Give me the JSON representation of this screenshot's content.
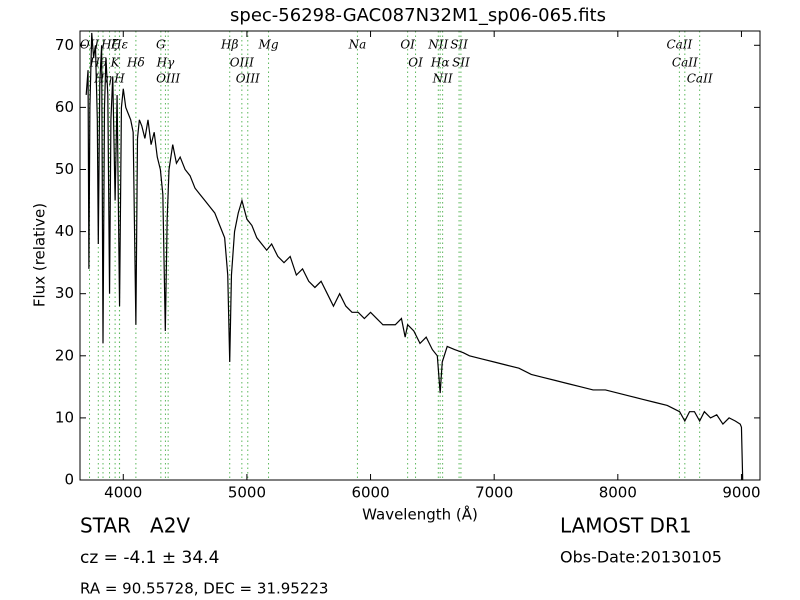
{
  "chart_data": {
    "type": "line",
    "title": "spec-56298-GAC087N32M1_sp06-065.fits",
    "x_label": "Wavelength (Å)",
    "y_label": "Flux (relative)",
    "color": "#000000",
    "xlim": [
      3650,
      9150
    ],
    "ylim": [
      0,
      72.3
    ],
    "xticks": [
      4000,
      5000,
      6000,
      7000,
      8000,
      9000
    ],
    "yticks": [
      0,
      10,
      20,
      30,
      40,
      50,
      60,
      70
    ],
    "x": [
      3700,
      3715,
      3722,
      3730,
      3745,
      3760,
      3775,
      3790,
      3798,
      3810,
      3825,
      3836,
      3848,
      3860,
      3875,
      3889,
      3900,
      3915,
      3934,
      3950,
      3970,
      3985,
      4000,
      4020,
      4040,
      4060,
      4080,
      4102,
      4115,
      4130,
      4150,
      4175,
      4200,
      4225,
      4250,
      4275,
      4300,
      4320,
      4340,
      4355,
      4370,
      4400,
      4430,
      4460,
      4500,
      4540,
      4580,
      4620,
      4660,
      4700,
      4740,
      4780,
      4820,
      4845,
      4861,
      4875,
      4900,
      4930,
      4960,
      5000,
      5040,
      5080,
      5120,
      5160,
      5200,
      5250,
      5300,
      5350,
      5400,
      5450,
      5500,
      5550,
      5600,
      5650,
      5700,
      5750,
      5800,
      5850,
      5900,
      5950,
      6000,
      6050,
      6100,
      6150,
      6200,
      6250,
      6280,
      6300,
      6350,
      6400,
      6450,
      6500,
      6540,
      6563,
      6580,
      6620,
      6680,
      6750,
      6800,
      6900,
      7000,
      7100,
      7200,
      7300,
      7400,
      7500,
      7600,
      7700,
      7800,
      7900,
      8000,
      8100,
      8200,
      8300,
      8400,
      8450,
      8500,
      8542,
      8580,
      8620,
      8662,
      8700,
      8750,
      8800,
      8850,
      8900,
      8950,
      8990,
      9000,
      9010
    ],
    "values": [
      62,
      66,
      34,
      60,
      72,
      68,
      70,
      58,
      38,
      64,
      70,
      22,
      60,
      68,
      62,
      30,
      58,
      65,
      45,
      62,
      28,
      60,
      63,
      60,
      59,
      58,
      56,
      25,
      55,
      58,
      57,
      55,
      58,
      54,
      56,
      52,
      50,
      46,
      24,
      42,
      50,
      54,
      51,
      52,
      50,
      49,
      47,
      46,
      45,
      44,
      43,
      41,
      39,
      33,
      19,
      33,
      40,
      43,
      45,
      42,
      41,
      39,
      38,
      37,
      38,
      36,
      35,
      36,
      33,
      34,
      32,
      31,
      32,
      30,
      28,
      30,
      28,
      27,
      27,
      26,
      27,
      26,
      25,
      25,
      25,
      26,
      23,
      25,
      24,
      22,
      23,
      21,
      20,
      14,
      19,
      21.5,
      21,
      20.5,
      20,
      19.5,
      19,
      18.5,
      18,
      17,
      16.5,
      16,
      15.5,
      15,
      14.5,
      14.5,
      14,
      13.5,
      13,
      12.5,
      12,
      11.5,
      11,
      9.5,
      11,
      11,
      9.5,
      11,
      10,
      10.5,
      9,
      10,
      9.5,
      9,
      8.5,
      0
    ],
    "lines": [
      {
        "label": "OII",
        "wavelength": 3727
      },
      {
        "label": "Hθ",
        "wavelength": 3798
      },
      {
        "label": "Hη",
        "wavelength": 3836
      },
      {
        "label": "Hζ",
        "wavelength": 3889
      },
      {
        "label": "K",
        "wavelength": 3934
      },
      {
        "label": "H",
        "wavelength": 3969
      },
      {
        "label": "Hε",
        "wavelength": 3970
      },
      {
        "label": "Hδ",
        "wavelength": 4102
      },
      {
        "label": "G",
        "wavelength": 4304
      },
      {
        "label": "Hγ",
        "wavelength": 4341
      },
      {
        "label": "OIII",
        "wavelength": 4363
      },
      {
        "label": "Hβ",
        "wavelength": 4861
      },
      {
        "label": "OIII",
        "wavelength": 4959
      },
      {
        "label": "OIII",
        "wavelength": 5007
      },
      {
        "label": "Mg",
        "wavelength": 5175
      },
      {
        "label": "Na",
        "wavelength": 5894
      },
      {
        "label": "OI",
        "wavelength": 6300
      },
      {
        "label": "OI",
        "wavelength": 6364
      },
      {
        "label": "NII",
        "wavelength": 6548
      },
      {
        "label": "Hα",
        "wavelength": 6563
      },
      {
        "label": "NII",
        "wavelength": 6583
      },
      {
        "label": "SII",
        "wavelength": 6716
      },
      {
        "label": "SII",
        "wavelength": 6731
      },
      {
        "label": "CaII",
        "wavelength": 8498
      },
      {
        "label": "CaII",
        "wavelength": 8542
      },
      {
        "label": "CaII",
        "wavelength": 8662
      }
    ],
    "info": {
      "class": "STAR   A2V",
      "cz": "cz = -4.1 ± 34.4",
      "coords": "RA = 90.55728, DEC = 31.95223",
      "survey": "LAMOST DR1",
      "obs_date": "Obs-Date:20130105"
    }
  }
}
